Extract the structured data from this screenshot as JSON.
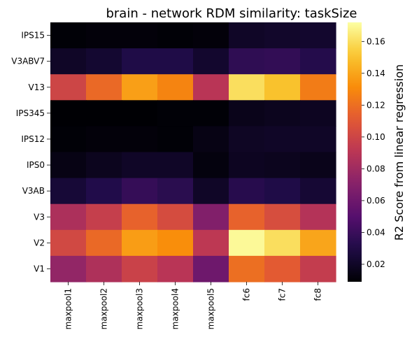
{
  "chart_data": {
    "type": "heatmap",
    "title": "brain - network RDM similarity: taskSize",
    "x_categories": [
      "maxpool1",
      "maxpool2",
      "maxpool3",
      "maxpool4",
      "maxpool5",
      "fc6",
      "fc7",
      "fc8"
    ],
    "y_categories": [
      "IPS15",
      "V3ABV7",
      "V13",
      "IPS345",
      "IPS12",
      "IPS0",
      "V3AB",
      "V3",
      "V2",
      "V1"
    ],
    "values": [
      [
        0.01,
        0.011,
        0.011,
        0.01,
        0.011,
        0.02,
        0.021,
        0.022
      ],
      [
        0.02,
        0.023,
        0.03,
        0.03,
        0.022,
        0.036,
        0.037,
        0.032
      ],
      [
        0.1,
        0.118,
        0.138,
        0.128,
        0.09,
        0.16,
        0.15,
        0.125
      ],
      [
        0.009,
        0.009,
        0.009,
        0.01,
        0.01,
        0.016,
        0.017,
        0.018
      ],
      [
        0.01,
        0.011,
        0.011,
        0.01,
        0.014,
        0.019,
        0.02,
        0.02
      ],
      [
        0.014,
        0.017,
        0.02,
        0.02,
        0.012,
        0.018,
        0.017,
        0.016
      ],
      [
        0.025,
        0.031,
        0.038,
        0.034,
        0.02,
        0.033,
        0.03,
        0.024
      ],
      [
        0.085,
        0.096,
        0.115,
        0.104,
        0.068,
        0.115,
        0.105,
        0.088
      ],
      [
        0.102,
        0.118,
        0.137,
        0.132,
        0.092,
        0.17,
        0.16,
        0.14
      ],
      [
        0.075,
        0.086,
        0.098,
        0.09,
        0.06,
        0.12,
        0.112,
        0.095
      ]
    ],
    "colorbar": {
      "label": "R2 Score from linear regression",
      "min": 0.009,
      "max": 0.172,
      "ticks": [
        0.02,
        0.04,
        0.06,
        0.08,
        0.1,
        0.12,
        0.14,
        0.16
      ],
      "tick_labels": [
        "0.02",
        "0.04",
        "0.06",
        "0.08",
        "0.10",
        "0.12",
        "0.14",
        "0.16"
      ],
      "colormap": "inferno"
    },
    "grid": false,
    "legend": "colorbar-right"
  }
}
